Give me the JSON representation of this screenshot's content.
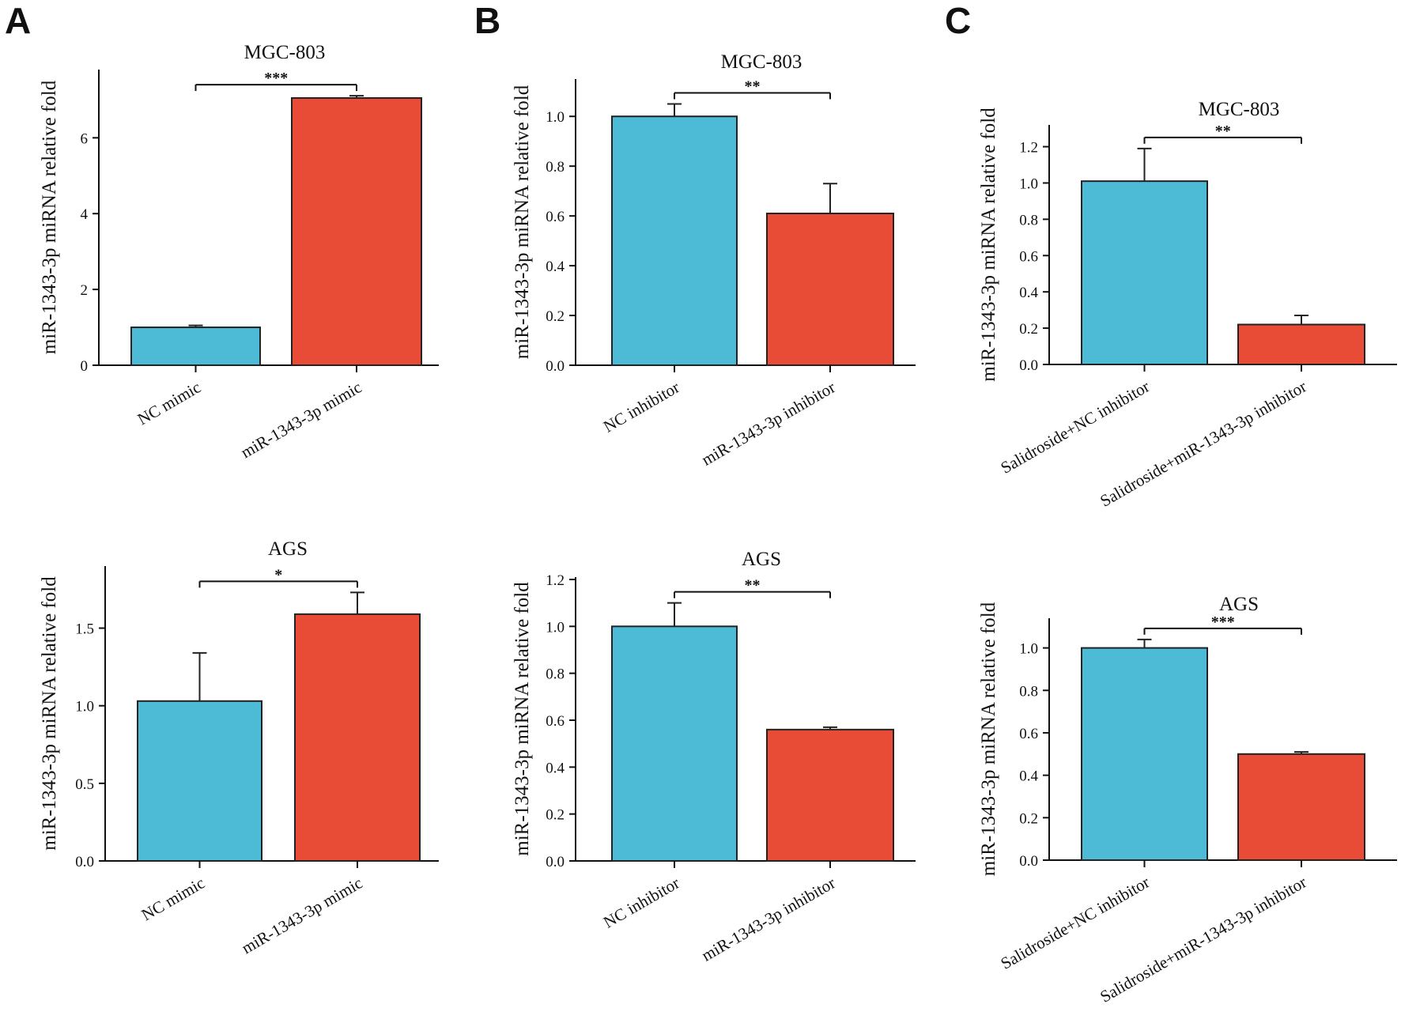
{
  "figure": {
    "panel_letters": [
      "A",
      "B",
      "C"
    ]
  },
  "chart_data": [
    {
      "type": "bar",
      "panel": "A",
      "title": "MGC-803",
      "ylabel": "miR-1343-3p miRNA relative fold",
      "categories": [
        "NC mimic",
        "miR-1343-3p mimic"
      ],
      "values": [
        1.0,
        7.05
      ],
      "errors": [
        0.05,
        0.06
      ],
      "colors": [
        "#4dbad6",
        "#e84c37"
      ],
      "ylim": [
        0,
        7.8
      ],
      "yticks": [
        0,
        2,
        4,
        6
      ],
      "tick_decimals": 0,
      "significance": "***"
    },
    {
      "type": "bar",
      "panel": "B",
      "title": "MGC-803",
      "ylabel": "miR-1343-3p miRNA relative fold",
      "categories": [
        "NC inhibitor",
        "miR-1343-3p inhibitor"
      ],
      "values": [
        1.0,
        0.61
      ],
      "errors": [
        0.05,
        0.12
      ],
      "colors": [
        "#4dbad6",
        "#e84c37"
      ],
      "ylim": [
        0,
        1.15
      ],
      "yticks": [
        0.0,
        0.2,
        0.4,
        0.6,
        0.8,
        1.0
      ],
      "tick_decimals": 1,
      "significance": "**"
    },
    {
      "type": "bar",
      "panel": "C",
      "title": "MGC-803",
      "ylabel": "miR-1343-3p miRNA relative fold",
      "categories": [
        "Salidroside+NC inhibitor",
        "Salidroside+miR-1343-3p inhibitor"
      ],
      "values": [
        1.01,
        0.22
      ],
      "errors": [
        0.18,
        0.05
      ],
      "colors": [
        "#4dbad6",
        "#e84c37"
      ],
      "ylim": [
        0,
        1.32
      ],
      "yticks": [
        0.0,
        0.2,
        0.4,
        0.6,
        0.8,
        1.0,
        1.2
      ],
      "tick_decimals": 1,
      "significance": "**"
    },
    {
      "type": "bar",
      "panel": "A",
      "title": "AGS",
      "ylabel": "miR-1343-3p miRNA relative fold",
      "categories": [
        "NC mimic",
        "miR-1343-3p mimic"
      ],
      "values": [
        1.03,
        1.59
      ],
      "errors": [
        0.31,
        0.14
      ],
      "colors": [
        "#4dbad6",
        "#e84c37"
      ],
      "ylim": [
        0,
        1.9
      ],
      "yticks": [
        0.0,
        0.5,
        1.0,
        1.5
      ],
      "tick_decimals": 1,
      "significance": "*"
    },
    {
      "type": "bar",
      "panel": "B",
      "title": "AGS",
      "ylabel": "miR-1343-3p miRNA relative fold",
      "categories": [
        "NC inhibitor",
        "miR-1343-3p inhibitor"
      ],
      "values": [
        1.0,
        0.56
      ],
      "errors": [
        0.1,
        0.01
      ],
      "colors": [
        "#4dbad6",
        "#e84c37"
      ],
      "ylim": [
        0,
        1.21
      ],
      "yticks": [
        0.0,
        0.2,
        0.4,
        0.6,
        0.8,
        1.0,
        1.2
      ],
      "tick_decimals": 1,
      "significance": "**"
    },
    {
      "type": "bar",
      "panel": "C",
      "title": "AGS",
      "ylabel": "miR-1343-3p miRNA relative fold",
      "categories": [
        "Salidroside+NC inhibitor",
        "Salidroside+miR-1343-3p inhibitor"
      ],
      "values": [
        1.0,
        0.5
      ],
      "errors": [
        0.04,
        0.01
      ],
      "colors": [
        "#4dbad6",
        "#e84c37"
      ],
      "ylim": [
        0,
        1.14
      ],
      "yticks": [
        0.0,
        0.2,
        0.4,
        0.6,
        0.8,
        1.0
      ],
      "tick_decimals": 1,
      "significance": "***"
    }
  ]
}
